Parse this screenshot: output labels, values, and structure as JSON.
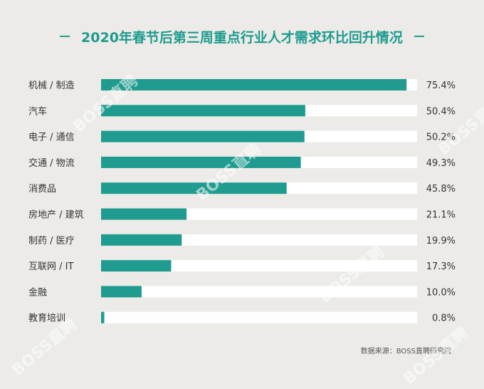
{
  "title": "2020年春节后第三周重点行业人才需求环比回升情况",
  "source": "数据来源：BOSS直聘研究院",
  "watermark": "BOSS直聘",
  "colors": {
    "bar": "#1f9b8f",
    "track": "#ffffff",
    "background": "#ecebe7",
    "title": "#1f9b8f"
  },
  "chart_data": {
    "type": "bar",
    "orientation": "horizontal",
    "title": "2020年春节后第三周重点行业人才需求环比回升情况",
    "categories": [
      "机械 / 制造",
      "汽车",
      "电子 / 通信",
      "交通 / 物流",
      "消费品",
      "房地产 / 建筑",
      "制药 / 医疗",
      "互联网 / IT",
      "金融",
      "教育培训"
    ],
    "values": [
      75.4,
      50.4,
      50.2,
      49.3,
      45.8,
      21.1,
      19.9,
      17.3,
      10.0,
      0.8
    ],
    "value_labels": [
      "75.4%",
      "50.4%",
      "50.2%",
      "49.3%",
      "45.8%",
      "21.1%",
      "19.9%",
      "17.3%",
      "10.0%",
      "0.8%"
    ],
    "xlim": [
      0,
      78
    ],
    "unit": "%",
    "grid": false,
    "legend": "none"
  }
}
